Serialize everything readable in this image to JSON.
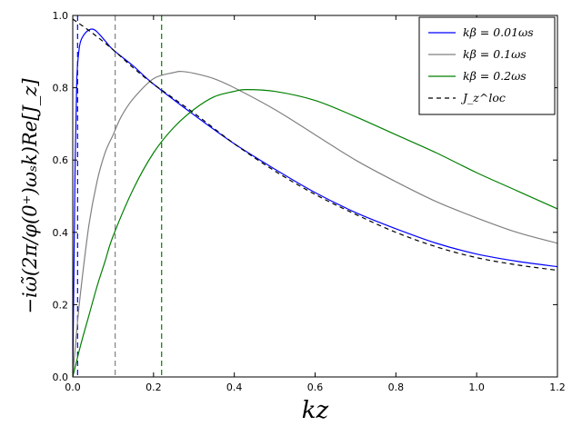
{
  "chart_data": {
    "type": "line",
    "title": "",
    "xlabel": "kz",
    "ylabel": "−iω̃(2π/φ(0⁺)ωₛk)Re[J_z]",
    "xlim": [
      0,
      1.2
    ],
    "ylim": [
      0,
      1.0
    ],
    "xticks": [
      0.0,
      0.2,
      0.4,
      0.6,
      0.8,
      1.0,
      1.2
    ],
    "xtick_labels": [
      "0.0",
      "0.2",
      "0.4",
      "0.6",
      "0.8",
      "1.0",
      "1.2"
    ],
    "yticks": [
      0.0,
      0.2,
      0.4,
      0.6,
      0.8,
      1.0
    ],
    "ytick_labels": [
      "0.0",
      "0.2",
      "0.4",
      "0.6",
      "0.8",
      "1.0"
    ],
    "grid": false,
    "legend_position": "top-right",
    "vlines": [
      {
        "x": 0.012,
        "color": "#0000ff",
        "style": "dashed"
      },
      {
        "x": 0.105,
        "color": "#808080",
        "style": "dashed"
      },
      {
        "x": 0.22,
        "color": "#008000",
        "style": "dashed"
      }
    ],
    "series": [
      {
        "name": "kβ = 0.01ωs",
        "color": "#0000ff",
        "style": "solid",
        "x": [
          0.0,
          0.003,
          0.006,
          0.01,
          0.015,
          0.02,
          0.03,
          0.04,
          0.05,
          0.06,
          0.08,
          0.1,
          0.15,
          0.2,
          0.3,
          0.4,
          0.5,
          0.6,
          0.7,
          0.8,
          0.9,
          1.0,
          1.1,
          1.2
        ],
        "values": [
          0.0,
          0.3,
          0.6,
          0.82,
          0.9,
          0.93,
          0.95,
          0.96,
          0.962,
          0.955,
          0.93,
          0.905,
          0.86,
          0.81,
          0.725,
          0.645,
          0.575,
          0.51,
          0.455,
          0.41,
          0.37,
          0.34,
          0.32,
          0.305
        ]
      },
      {
        "name": "kβ = 0.1ωs",
        "color": "#808080",
        "style": "solid",
        "x": [
          0.0,
          0.01,
          0.02,
          0.04,
          0.06,
          0.08,
          0.1,
          0.12,
          0.15,
          0.2,
          0.25,
          0.27,
          0.3,
          0.35,
          0.4,
          0.5,
          0.6,
          0.7,
          0.8,
          0.9,
          1.0,
          1.1,
          1.2
        ],
        "values": [
          0.0,
          0.13,
          0.24,
          0.42,
          0.54,
          0.62,
          0.67,
          0.72,
          0.77,
          0.825,
          0.842,
          0.845,
          0.84,
          0.825,
          0.8,
          0.74,
          0.67,
          0.6,
          0.54,
          0.485,
          0.44,
          0.4,
          0.37
        ]
      },
      {
        "name": "kβ = 0.2ωs",
        "color": "#008000",
        "style": "solid",
        "x": [
          0.0,
          0.02,
          0.04,
          0.06,
          0.08,
          0.1,
          0.15,
          0.2,
          0.25,
          0.3,
          0.35,
          0.4,
          0.43,
          0.5,
          0.6,
          0.7,
          0.8,
          0.9,
          1.0,
          1.1,
          1.2
        ],
        "values": [
          0.0,
          0.09,
          0.17,
          0.25,
          0.32,
          0.39,
          0.52,
          0.62,
          0.69,
          0.74,
          0.775,
          0.79,
          0.795,
          0.79,
          0.765,
          0.72,
          0.67,
          0.62,
          0.565,
          0.515,
          0.465
        ]
      },
      {
        "name": "J_z^loc",
        "color": "#000000",
        "style": "dashed",
        "x": [
          0.0,
          0.05,
          0.1,
          0.15,
          0.2,
          0.3,
          0.4,
          0.5,
          0.6,
          0.7,
          0.8,
          0.9,
          1.0,
          1.1,
          1.2
        ],
        "values": [
          0.99,
          0.95,
          0.905,
          0.855,
          0.81,
          0.73,
          0.645,
          0.57,
          0.505,
          0.45,
          0.4,
          0.36,
          0.33,
          0.31,
          0.295
        ]
      }
    ]
  }
}
